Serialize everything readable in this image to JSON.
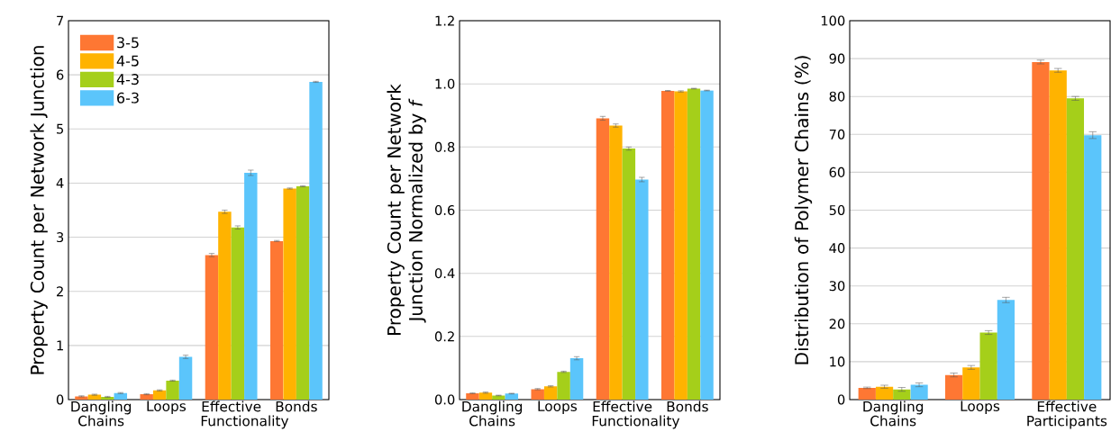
{
  "chart_data": [
    {
      "type": "bar",
      "ylabel": "Property Count per Network Junction",
      "categories": [
        "Dangling Chains",
        "Loops",
        "Effective Functionality",
        "Bonds"
      ],
      "series": [
        {
          "name": "3-5",
          "color": "#fe7733",
          "values": [
            0.06,
            0.1,
            2.67,
            2.93
          ],
          "errors": [
            0.01,
            0.01,
            0.03,
            0.01
          ]
        },
        {
          "name": "4-5",
          "color": "#ffb300",
          "values": [
            0.09,
            0.17,
            3.47,
            3.9
          ],
          "errors": [
            0.01,
            0.01,
            0.03,
            0.01
          ]
        },
        {
          "name": "4-3",
          "color": "#a5cf1a",
          "values": [
            0.05,
            0.35,
            3.18,
            3.94
          ],
          "errors": [
            0.01,
            0.01,
            0.03,
            0.01
          ]
        },
        {
          "name": "6-3",
          "color": "#5bc5fb",
          "values": [
            0.12,
            0.79,
            4.19,
            5.87
          ],
          "errors": [
            0.01,
            0.03,
            0.05,
            0.01
          ]
        }
      ],
      "ylim": [
        0,
        7
      ],
      "yticks": [
        0,
        1,
        2,
        3,
        4,
        5,
        6,
        7
      ],
      "grid": "y",
      "legend": "top left"
    },
    {
      "type": "bar",
      "ylabel": "Property Count per Network Junction Normalized by *f*",
      "categories": [
        "Dangling Chains",
        "Loops",
        "Effective Functionality",
        "Bonds"
      ],
      "series": [
        {
          "color": "#fe7733",
          "values": [
            0.02,
            0.033,
            0.891,
            0.978
          ],
          "errors": [
            0.001,
            0.002,
            0.006,
            0.001
          ]
        },
        {
          "color": "#ffb300",
          "values": [
            0.022,
            0.042,
            0.868,
            0.976
          ],
          "errors": [
            0.002,
            0.002,
            0.005,
            0.002
          ]
        },
        {
          "color": "#a5cf1a",
          "values": [
            0.013,
            0.088,
            0.795,
            0.985
          ],
          "errors": [
            0.001,
            0.002,
            0.005,
            0.001
          ]
        },
        {
          "color": "#5bc5fb",
          "values": [
            0.019,
            0.131,
            0.697,
            0.979
          ],
          "errors": [
            0.001,
            0.005,
            0.007,
            0.001
          ]
        }
      ],
      "ylim": [
        0,
        1.2
      ],
      "yticks": [
        {
          "value": 0,
          "label": "0.0"
        },
        {
          "value": 0.2,
          "label": "0.2"
        },
        {
          "value": 0.4,
          "label": "0.4"
        },
        {
          "value": 0.6,
          "label": "0.6"
        },
        {
          "value": 0.8,
          "label": "0.8"
        },
        {
          "value": 1,
          "label": "1.0"
        },
        {
          "value": 1.2,
          "label": "1.2"
        }
      ],
      "grid": "y"
    },
    {
      "type": "bar",
      "ylabel": "Distribution of Polymer Chains (%)",
      "categories": [
        "Dangling Chains",
        "Loops",
        "Effective Participants"
      ],
      "series": [
        {
          "color": "#fe7733",
          "values": [
            3.1,
            6.5,
            89.1
          ],
          "errors": [
            0.2,
            0.5,
            0.5
          ]
        },
        {
          "color": "#ffb300",
          "values": [
            3.4,
            8.5,
            86.9
          ],
          "errors": [
            0.4,
            0.5,
            0.5
          ]
        },
        {
          "color": "#a5cf1a",
          "values": [
            2.7,
            17.7,
            79.5
          ],
          "errors": [
            0.5,
            0.5,
            0.5
          ]
        },
        {
          "color": "#5bc5fb",
          "values": [
            3.9,
            26.3,
            69.8
          ],
          "errors": [
            0.5,
            0.7,
            0.9
          ]
        }
      ],
      "ylim": [
        0,
        100
      ],
      "yticks": [
        0,
        10,
        20,
        30,
        40,
        50,
        60,
        70,
        80,
        90,
        100
      ],
      "grid": "y"
    }
  ]
}
